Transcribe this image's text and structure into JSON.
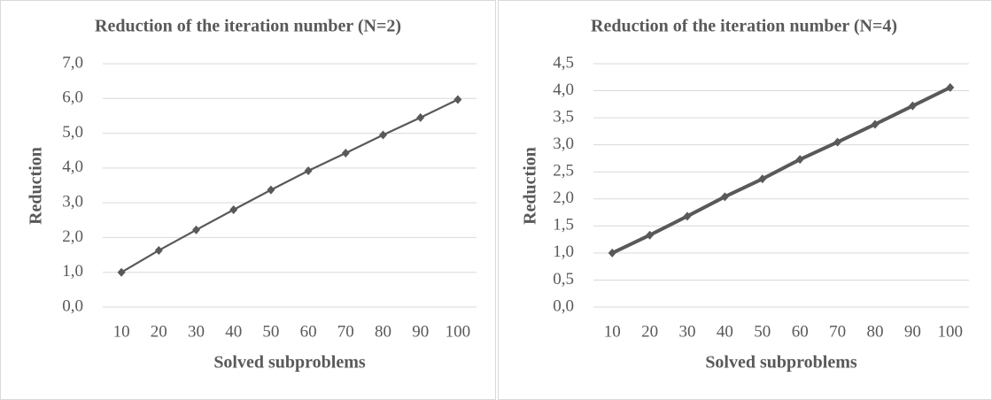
{
  "chart_data": [
    {
      "type": "line",
      "title": "Reduction of the iteration number (N=2)",
      "x_label": "Solved subproblems",
      "y_label": "Reduction",
      "categories": [
        "10",
        "20",
        "30",
        "40",
        "50",
        "60",
        "70",
        "80",
        "90",
        "100"
      ],
      "series": [
        {
          "color": "#595959",
          "values": [
            1.0,
            1.63,
            2.22,
            2.8,
            3.37,
            3.92,
            4.43,
            4.95,
            5.45,
            5.97
          ]
        }
      ],
      "ylim": [
        0,
        7
      ],
      "yticks": [
        {
          "value": 0,
          "label": "0,0"
        },
        {
          "value": 1,
          "label": "1,0"
        },
        {
          "value": 2,
          "label": "2,0"
        },
        {
          "value": 3,
          "label": "3,0"
        },
        {
          "value": 4,
          "label": "4,0"
        },
        {
          "value": 5,
          "label": "5,0"
        },
        {
          "value": 6,
          "label": "6,0"
        },
        {
          "value": 7,
          "label": "7,0"
        }
      ],
      "grid": true
    },
    {
      "type": "line",
      "title": "Reduction of the iteration number (N=4)",
      "x_label": "Solved subproblems",
      "y_label": "Reduction",
      "categories": [
        "10",
        "20",
        "30",
        "40",
        "50",
        "60",
        "70",
        "80",
        "90",
        "100"
      ],
      "series": [
        {
          "color": "#595959",
          "values": [
            1.0,
            1.33,
            1.68,
            2.04,
            2.37,
            2.73,
            3.05,
            3.38,
            3.72,
            4.06
          ]
        }
      ],
      "ylim": [
        0,
        4.5
      ],
      "yticks": [
        {
          "value": 0,
          "label": "0,0"
        },
        {
          "value": 0.5,
          "label": "0,5"
        },
        {
          "value": 1,
          "label": "1,0"
        },
        {
          "value": 1.5,
          "label": "1,5"
        },
        {
          "value": 2,
          "label": "2,0"
        },
        {
          "value": 2.5,
          "label": "2,5"
        },
        {
          "value": 3,
          "label": "3,0"
        },
        {
          "value": 3.5,
          "label": "3,5"
        },
        {
          "value": 4,
          "label": "4,0"
        },
        {
          "value": 4.5,
          "label": "4,5"
        }
      ],
      "grid": true
    }
  ]
}
